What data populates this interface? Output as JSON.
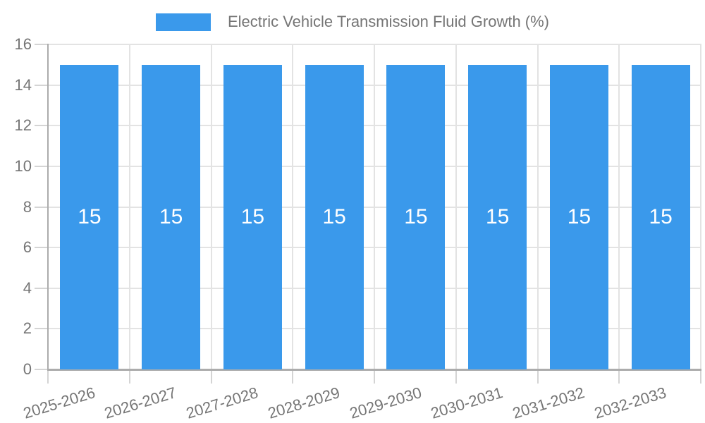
{
  "chart_data": {
    "type": "bar",
    "title": "Electric Vehicle Transmission Fluid Growth (%)",
    "legend_entries": [
      "Electric Vehicle Transmission Fluid Growth (%)"
    ],
    "legend_position": "top",
    "categories": [
      "2025-2026",
      "2026-2027",
      "2027-2028",
      "2028-2029",
      "2029-2030",
      "2030-2031",
      "2031-2032",
      "2032-2033"
    ],
    "series": [
      {
        "name": "Electric Vehicle Transmission Fluid Growth (%)",
        "values": [
          15,
          15,
          15,
          15,
          15,
          15,
          15,
          15
        ]
      }
    ],
    "bar_value_labels": [
      "15",
      "15",
      "15",
      "15",
      "15",
      "15",
      "15",
      "15"
    ],
    "xlabel": "",
    "ylabel": "",
    "ylim": [
      0,
      16
    ],
    "yticks": [
      0,
      2,
      4,
      6,
      8,
      10,
      12,
      14,
      16
    ],
    "grid": true,
    "x_tick_label_rotation_deg": -17
  },
  "colors": {
    "bar": "#3A99EB",
    "bar_value_label": "#FFFFFF",
    "axis_text": "#757575",
    "grid_line": "#E3E3E3",
    "axis_line": "#ACACAC",
    "tick_mark": "#D4D4D4",
    "background": "#FFFFFF"
  }
}
